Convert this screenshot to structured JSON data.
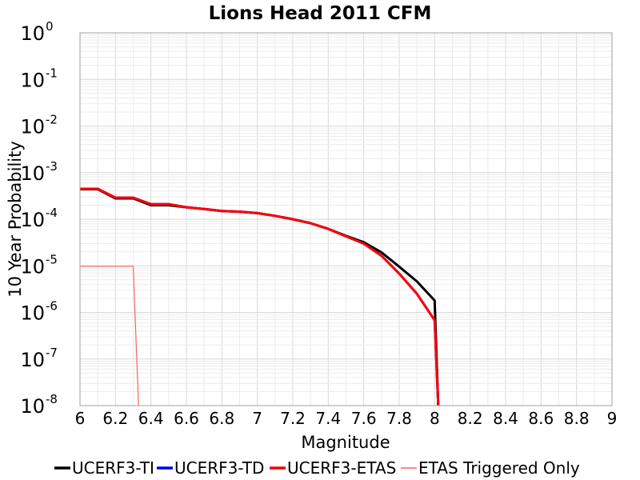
{
  "chart_data": {
    "type": "line",
    "title": "Lions Head 2011 CFM",
    "xlabel": "Magnitude",
    "ylabel": "10 Year Probability",
    "xlim": [
      6,
      9
    ],
    "ylim": [
      1e-08,
      1
    ],
    "yscale": "log",
    "grid": true,
    "legend_position": "bottom",
    "x_ticks": [
      "6",
      "6.2",
      "6.4",
      "6.6",
      "6.8",
      "7",
      "7.2",
      "7.4",
      "7.6",
      "7.8",
      "8",
      "8.2",
      "8.4",
      "8.6",
      "8.8",
      "9"
    ],
    "y_ticks": [
      {
        "base": "10",
        "exp": "0"
      },
      {
        "base": "10",
        "exp": "-1"
      },
      {
        "base": "10",
        "exp": "-2"
      },
      {
        "base": "10",
        "exp": "-3"
      },
      {
        "base": "10",
        "exp": "-4"
      },
      {
        "base": "10",
        "exp": "-5"
      },
      {
        "base": "10",
        "exp": "-6"
      },
      {
        "base": "10",
        "exp": "-7"
      },
      {
        "base": "10",
        "exp": "-8"
      }
    ],
    "series": [
      {
        "name": "UCERF3-TI",
        "color": "#000000",
        "width": 3,
        "x": [
          6.0,
          6.1,
          6.2,
          6.3,
          6.4,
          6.5,
          6.6,
          6.7,
          6.8,
          6.9,
          7.0,
          7.1,
          7.2,
          7.3,
          7.4,
          7.5,
          7.6,
          7.7,
          7.8,
          7.9,
          8.0,
          8.02
        ],
        "y": [
          0.00044,
          0.00044,
          0.00028,
          0.00028,
          0.0002,
          0.0002,
          0.00018,
          0.000165,
          0.00015,
          0.000145,
          0.000135,
          0.000118,
          0.0001,
          8.2e-05,
          6.2e-05,
          4.4e-05,
          3.2e-05,
          1.95e-05,
          9.6e-06,
          4.6e-06,
          1.8e-06,
          1e-08
        ]
      },
      {
        "name": "UCERF3-TD",
        "color": "#0000ff",
        "width": 3,
        "x": [
          6.0,
          6.1,
          6.2,
          6.3,
          6.4,
          6.5,
          6.6,
          6.7,
          6.8,
          6.9,
          7.0,
          7.1,
          7.2,
          7.3,
          7.4,
          7.5,
          7.6,
          7.7,
          7.8,
          7.9,
          8.0,
          8.02
        ],
        "y": [
          0.00045,
          0.00045,
          0.00029,
          0.00029,
          0.00021,
          0.00021,
          0.00018,
          0.000165,
          0.00015,
          0.000145,
          0.000135,
          0.000118,
          0.0001,
          8.2e-05,
          6.2e-05,
          4.3e-05,
          3e-05,
          1.65e-05,
          6.8e-06,
          2.5e-06,
          6.8e-07,
          1e-08
        ]
      },
      {
        "name": "UCERF3-ETAS",
        "color": "#ff0000",
        "width": 3,
        "x": [
          6.0,
          6.1,
          6.2,
          6.3,
          6.4,
          6.5,
          6.6,
          6.7,
          6.8,
          6.9,
          7.0,
          7.1,
          7.2,
          7.3,
          7.4,
          7.5,
          7.6,
          7.7,
          7.8,
          7.9,
          8.0,
          8.02
        ],
        "y": [
          0.00045,
          0.00045,
          0.00029,
          0.00029,
          0.00021,
          0.00021,
          0.00018,
          0.000165,
          0.00015,
          0.000145,
          0.000135,
          0.000118,
          0.0001,
          8.2e-05,
          6.2e-05,
          4.3e-05,
          3e-05,
          1.65e-05,
          6.8e-06,
          2.5e-06,
          6.8e-07,
          1e-08
        ]
      },
      {
        "name": "ETAS Triggered Only",
        "color": "#ff6060",
        "width": 1.2,
        "x": [
          6.0,
          6.1,
          6.2,
          6.3,
          6.33
        ],
        "y": [
          9.8e-06,
          9.8e-06,
          9.8e-06,
          9.8e-06,
          1e-08
        ]
      }
    ]
  }
}
